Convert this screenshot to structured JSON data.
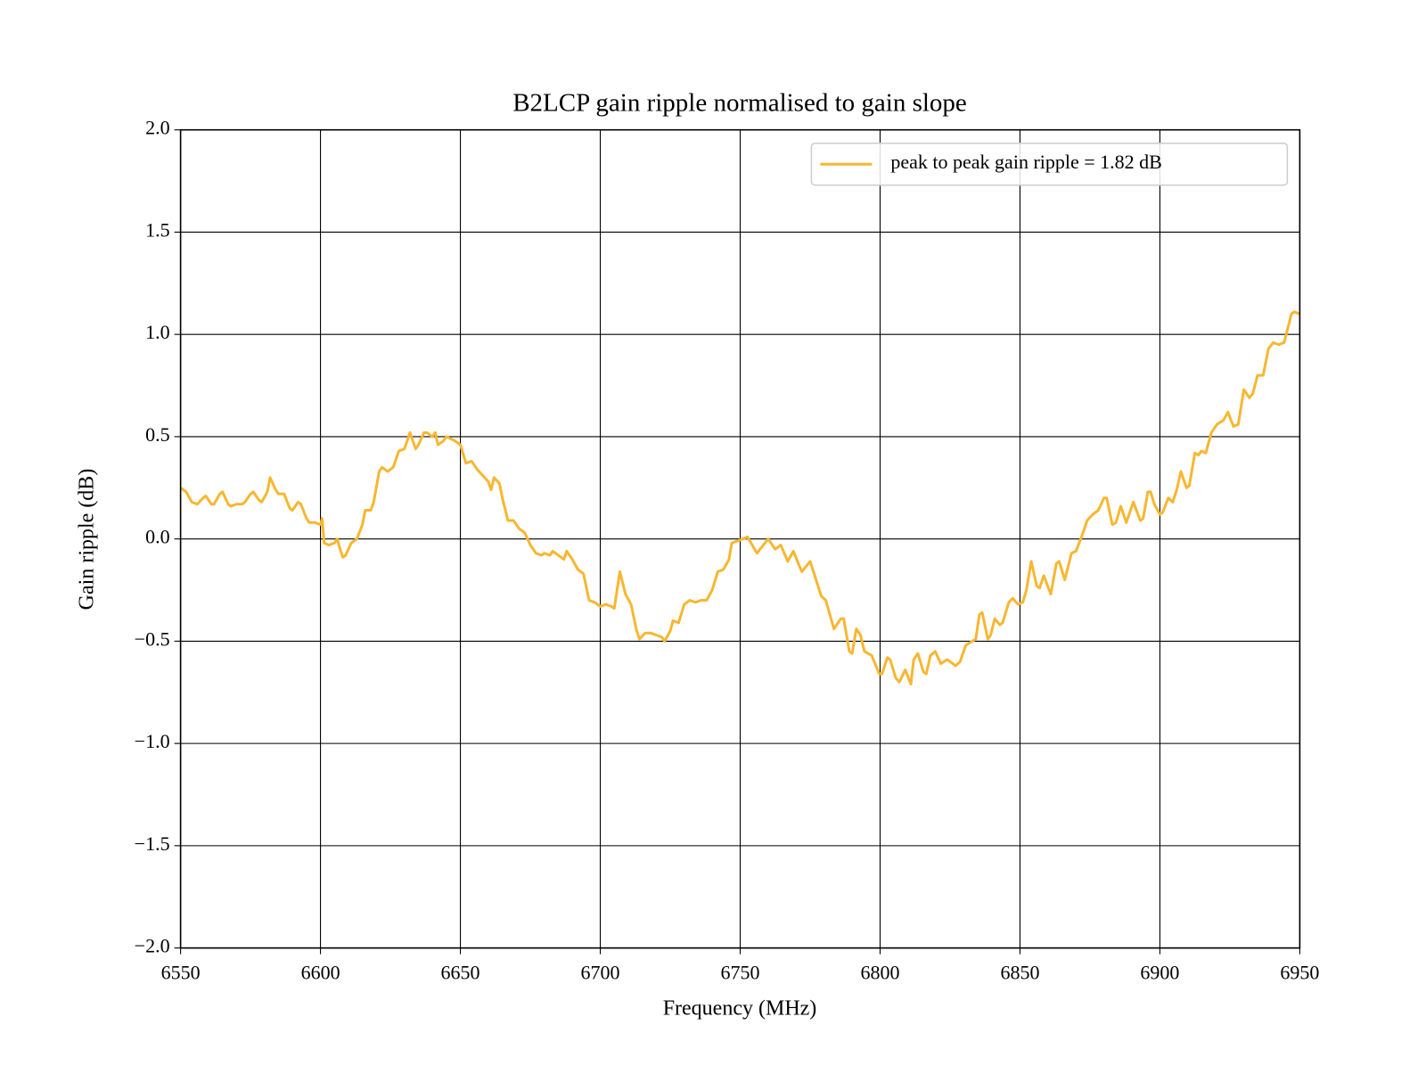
{
  "chart_data": {
    "type": "line",
    "title": "B2LCP gain ripple normalised to gain slope",
    "x_label": "Frequency (MHz)",
    "y_label": "Gain ripple (dB)",
    "xlim": [
      6550,
      6950
    ],
    "ylim": [
      -2.0,
      2.0
    ],
    "xticks": [
      6550,
      6600,
      6650,
      6700,
      6750,
      6800,
      6850,
      6900,
      6950
    ],
    "yticks": [
      {
        "value": -2.0,
        "label": "−2.0"
      },
      {
        "value": -1.5,
        "label": "−1.5"
      },
      {
        "value": -1.0,
        "label": "−1.0"
      },
      {
        "value": -0.5,
        "label": "−0.5"
      },
      {
        "value": 0.0,
        "label": "0.0"
      },
      0.5,
      {
        "value": 1.0,
        "label": "1.0"
      },
      1.5,
      {
        "value": 2.0,
        "label": "2.0"
      }
    ],
    "grid": true,
    "legend_position": "upper right",
    "series": [
      {
        "name": "peak to peak gain ripple = 1.82 dB",
        "color": "#f7b731",
        "x": [
          6550,
          6552,
          6554,
          6556,
          6558,
          6559,
          6561,
          6562,
          6564,
          6565,
          6567,
          6568,
          6570,
          6572,
          6573,
          6575,
          6576,
          6578,
          6579,
          6581,
          6582,
          6584,
          6585,
          6587,
          6589,
          6590,
          6592,
          6593,
          6595,
          6596,
          6598,
          6600,
          6600.6,
          6601.3,
          6603,
          6605,
          6606,
          6607,
          6608,
          6609,
          6611,
          6613,
          6615,
          6616,
          6618,
          6619,
          6621,
          6622,
          6624,
          6626,
          6628,
          6630,
          6631,
          6632,
          6634,
          6635,
          6637,
          6638,
          6640,
          6641,
          6642,
          6644,
          6645,
          6648,
          6650,
          6652,
          6654,
          6656,
          6658,
          6660,
          6661,
          6662,
          6664,
          6665,
          6667,
          6669,
          6671,
          6673,
          6675,
          6677,
          6679,
          6680,
          6682,
          6683,
          6687,
          6688,
          6690,
          6692,
          6694,
          6696,
          6698,
          6700,
          6702,
          6704,
          6705,
          6707,
          6709,
          6711,
          6713,
          6714,
          6716,
          6718,
          6720,
          6722,
          6723,
          6725,
          6726,
          6728,
          6730,
          6732,
          6734,
          6736,
          6738,
          6740,
          6742,
          6744,
          6746,
          6747,
          6749,
          6751,
          6752.6,
          6756,
          6760,
          6762.5,
          6764.5,
          6767,
          6769,
          6772,
          6775,
          6779,
          6780.6,
          6783.5,
          6786,
          6787,
          6789,
          6790,
          6791.5,
          6793,
          6794.4,
          6797,
          6799.7,
          6800.7,
          6802.6,
          6803.6,
          6805.6,
          6806.9,
          6809,
          6811,
          6812,
          6813.5,
          6815.5,
          6816.5,
          6818,
          6819.7,
          6821.7,
          6824,
          6827,
          6828.6,
          6830.6,
          6833,
          6834.2,
          6835.5,
          6836.5,
          6838.5,
          6839.5,
          6841,
          6842.8,
          6843.8,
          6846,
          6847.4,
          6849.3,
          6851,
          6852.3,
          6854,
          6856,
          6857,
          6858.5,
          6861,
          6863,
          6864,
          6866,
          6868.4,
          6870,
          6872,
          6874,
          6876,
          6878,
          6880,
          6881,
          6883,
          6884.3,
          6886,
          6888,
          6890.5,
          6893,
          6894,
          6895.7,
          6896.7,
          6898,
          6900,
          6901,
          6903,
          6904.6,
          6906,
          6907.5,
          6909.5,
          6910.5,
          6912.5,
          6913.8,
          6914.8,
          6916.4,
          6918.4,
          6920.4,
          6922.7,
          6924.3,
          6926.3,
          6928,
          6930,
          6932,
          6933.2,
          6934.9,
          6936.9,
          6938.8,
          6940.5,
          6942.5,
          6944.4,
          6947,
          6948,
          6950
        ],
        "values": [
          0.25,
          0.23,
          0.18,
          0.17,
          0.2,
          0.21,
          0.17,
          0.17,
          0.22,
          0.23,
          0.17,
          0.16,
          0.17,
          0.17,
          0.18,
          0.22,
          0.23,
          0.19,
          0.18,
          0.23,
          0.3,
          0.24,
          0.22,
          0.22,
          0.15,
          0.14,
          0.18,
          0.17,
          0.1,
          0.08,
          0.08,
          0.07,
          0.1,
          -0.02,
          -0.03,
          -0.02,
          0.0,
          -0.05,
          -0.09,
          -0.08,
          -0.02,
          0.0,
          0.07,
          0.14,
          0.14,
          0.18,
          0.33,
          0.35,
          0.33,
          0.35,
          0.43,
          0.44,
          0.48,
          0.52,
          0.44,
          0.46,
          0.52,
          0.52,
          0.5,
          0.52,
          0.46,
          0.48,
          0.5,
          0.48,
          0.46,
          0.37,
          0.38,
          0.34,
          0.31,
          0.28,
          0.24,
          0.3,
          0.27,
          0.2,
          0.09,
          0.09,
          0.05,
          0.03,
          -0.03,
          -0.07,
          -0.08,
          -0.07,
          -0.08,
          -0.06,
          -0.1,
          -0.06,
          -0.1,
          -0.15,
          -0.17,
          -0.3,
          -0.31,
          -0.33,
          -0.32,
          -0.33,
          -0.34,
          -0.16,
          -0.27,
          -0.32,
          -0.45,
          -0.49,
          -0.46,
          -0.46,
          -0.47,
          -0.48,
          -0.5,
          -0.45,
          -0.4,
          -0.41,
          -0.32,
          -0.3,
          -0.31,
          -0.3,
          -0.3,
          -0.25,
          -0.16,
          -0.15,
          -0.1,
          -0.02,
          -0.01,
          0.0,
          0.01,
          -0.07,
          0.0,
          -0.05,
          -0.03,
          -0.11,
          -0.06,
          -0.16,
          -0.11,
          -0.28,
          -0.3,
          -0.44,
          -0.39,
          -0.39,
          -0.55,
          -0.56,
          -0.44,
          -0.47,
          -0.55,
          -0.57,
          -0.66,
          -0.66,
          -0.58,
          -0.59,
          -0.68,
          -0.7,
          -0.64,
          -0.71,
          -0.59,
          -0.56,
          -0.65,
          -0.66,
          -0.57,
          -0.55,
          -0.61,
          -0.59,
          -0.62,
          -0.6,
          -0.52,
          -0.5,
          -0.49,
          -0.37,
          -0.36,
          -0.49,
          -0.47,
          -0.39,
          -0.42,
          -0.41,
          -0.31,
          -0.29,
          -0.32,
          -0.31,
          -0.25,
          -0.11,
          -0.23,
          -0.24,
          -0.18,
          -0.27,
          -0.12,
          -0.11,
          -0.2,
          -0.07,
          -0.06,
          0.01,
          0.09,
          0.12,
          0.14,
          0.2,
          0.2,
          0.07,
          0.08,
          0.16,
          0.08,
          0.18,
          0.09,
          0.1,
          0.23,
          0.23,
          0.17,
          0.12,
          0.13,
          0.2,
          0.18,
          0.24,
          0.33,
          0.25,
          0.26,
          0.42,
          0.41,
          0.43,
          0.42,
          0.52,
          0.56,
          0.58,
          0.62,
          0.55,
          0.56,
          0.73,
          0.69,
          0.71,
          0.8,
          0.8,
          0.93,
          0.96,
          0.95,
          0.96,
          1.1,
          1.11,
          1.1
        ]
      }
    ]
  }
}
